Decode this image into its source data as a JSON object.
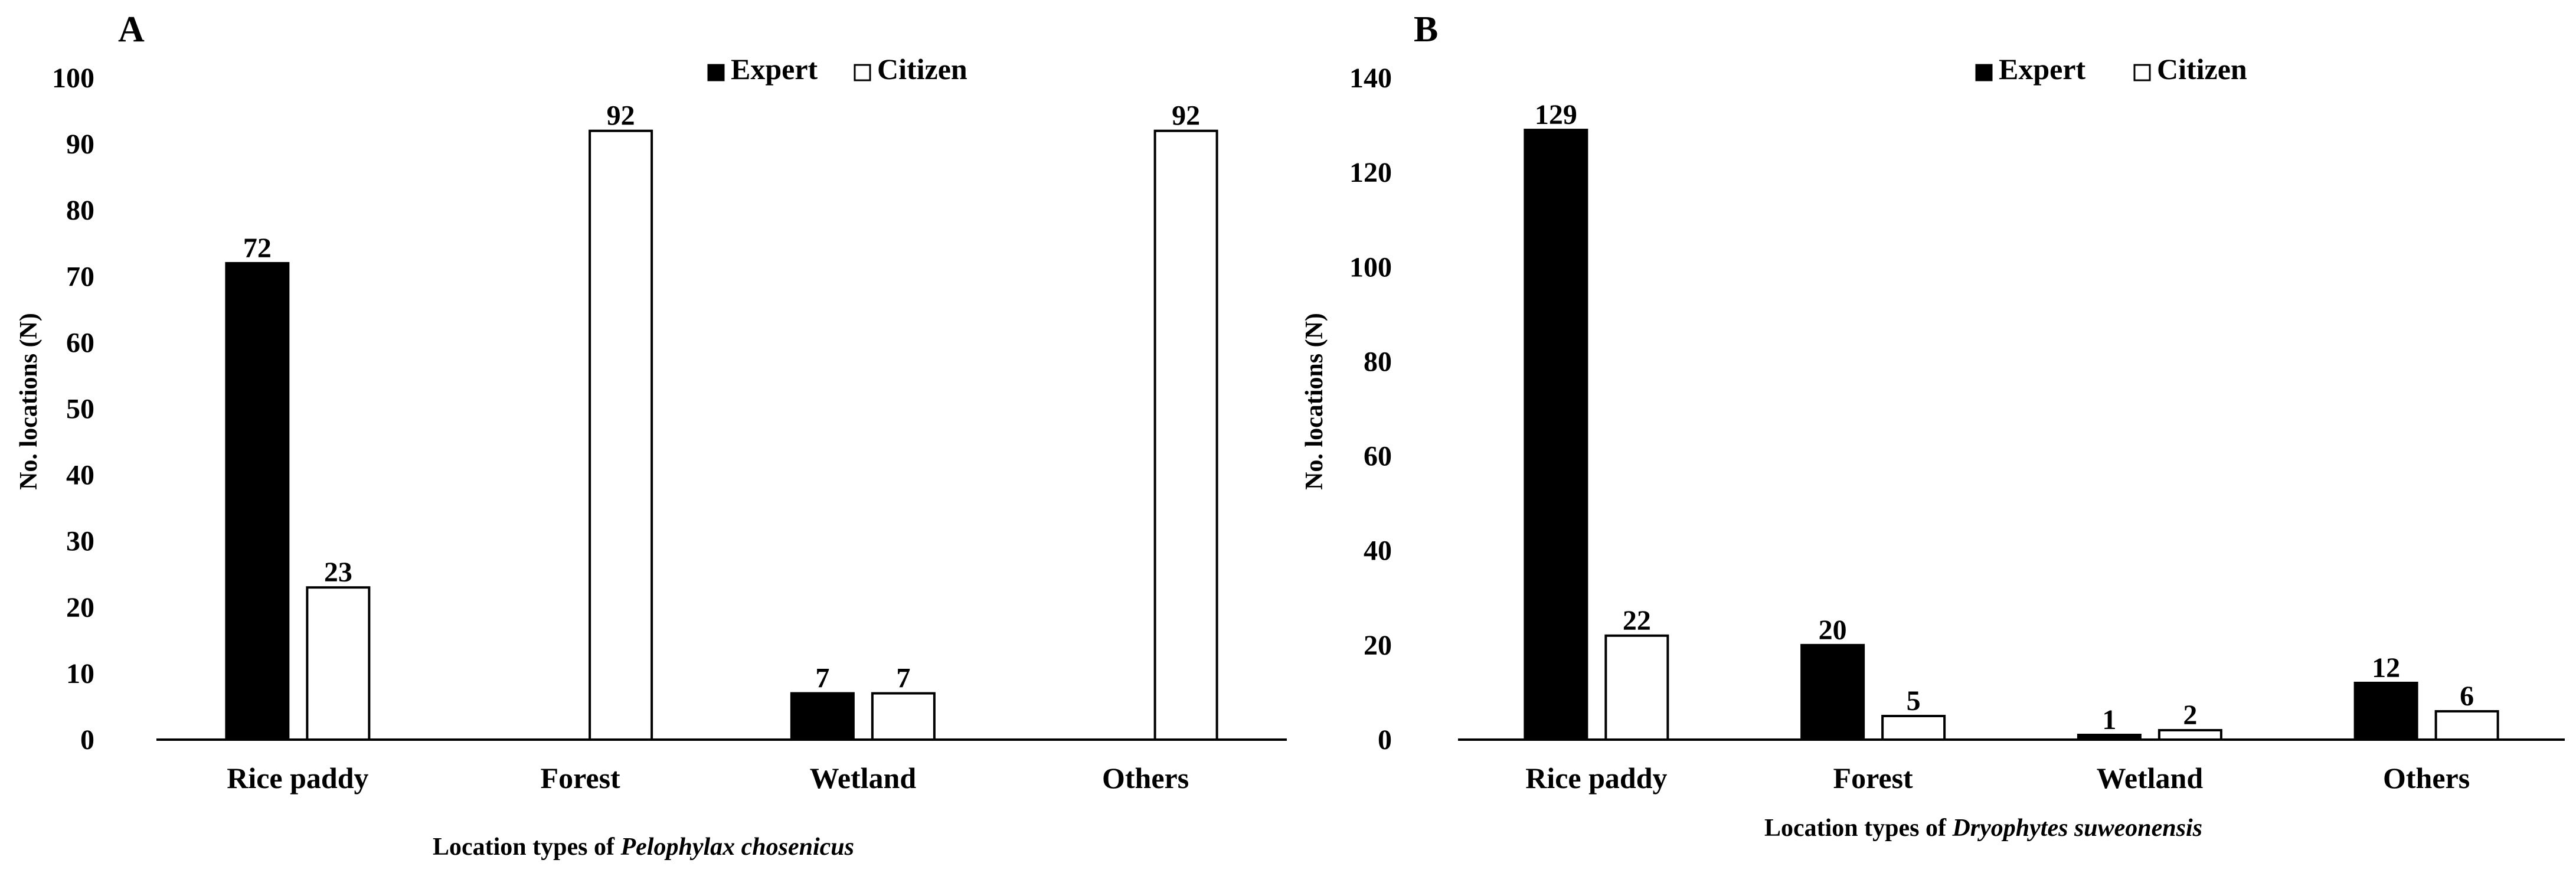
{
  "legend": {
    "expert": "Expert",
    "citizen": "Citizen"
  },
  "colors": {
    "expert": "#000000",
    "citizen": "#ffffff",
    "stroke": "#000000"
  },
  "chart_data": [
    {
      "type": "bar",
      "panel": "A",
      "categories": [
        "Rice paddy",
        "Forest",
        "Wetland",
        "Others"
      ],
      "series": [
        {
          "name": "Expert",
          "values": [
            72,
            0,
            7,
            0
          ],
          "labels": [
            "72",
            "",
            "7",
            ""
          ]
        },
        {
          "name": "Citizen",
          "values": [
            23,
            92,
            7,
            92
          ],
          "labels": [
            "23",
            "92",
            "7",
            "92"
          ]
        }
      ],
      "ylim": [
        0,
        100
      ],
      "yticks": [
        0,
        10,
        20,
        30,
        40,
        50,
        60,
        70,
        80,
        90,
        100
      ],
      "ylabel": "No. locations (N)",
      "xlabel_prefix": "Location types of ",
      "xlabel_species": "Pelophylax chosenicus",
      "legend_position": "top-right"
    },
    {
      "type": "bar",
      "panel": "B",
      "categories": [
        "Rice paddy",
        "Forest",
        "Wetland",
        "Others"
      ],
      "series": [
        {
          "name": "Expert",
          "values": [
            129,
            20,
            1,
            12
          ],
          "labels": [
            "129",
            "20",
            "1",
            "12"
          ]
        },
        {
          "name": "Citizen",
          "values": [
            22,
            5,
            2,
            6
          ],
          "labels": [
            "22",
            "5",
            "2",
            "6"
          ]
        }
      ],
      "ylim": [
        0,
        140
      ],
      "yticks": [
        0,
        20,
        40,
        60,
        80,
        100,
        120,
        140
      ],
      "ylabel": "No. locations (N)",
      "xlabel_prefix": "Location types of ",
      "xlabel_species": "Dryophytes suweonensis",
      "legend_position": "top-right"
    }
  ]
}
